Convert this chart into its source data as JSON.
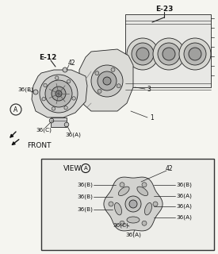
{
  "bg_color": "#f5f5f0",
  "labels": {
    "E23": "E-23",
    "E12": "E-12",
    "lbl_42": "42",
    "lbl_36B": "36(B)",
    "lbl_36C": "36(C)",
    "lbl_36A": "36(A)",
    "lbl_3": "3",
    "lbl_1": "1",
    "front": "FRONT",
    "view_A": "VIEW",
    "view_42": "42",
    "v36B_l1": "36(B)",
    "v36B_l2": "36(B)",
    "v36B_l3": "36(B)",
    "v36B_r1": "36(B)",
    "v36A_r1": "36(A)",
    "v36A_r2": "36(A)",
    "v36A_r3": "36(A)",
    "v36C": "36(C)",
    "v36A_bot": "36(A)"
  }
}
